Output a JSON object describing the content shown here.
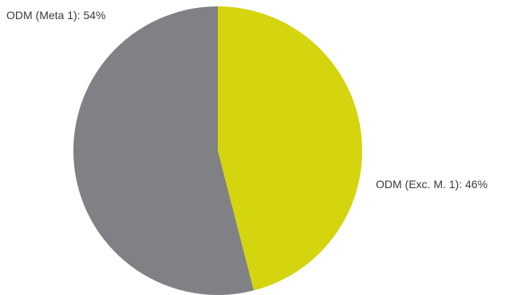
{
  "chart_data": {
    "type": "pie",
    "title": "",
    "slices": [
      {
        "label": "ODM (Exc. M. 1): 46%",
        "category": "ODM (Exc. M. 1)",
        "value": 46,
        "color": "#d4d40f"
      },
      {
        "label": "ODM (Meta 1): 54%",
        "category": "ODM (Meta 1)",
        "value": 54,
        "color": "#808184"
      }
    ],
    "start_angle": "12 o'clock",
    "direction": "clockwise",
    "legend": "none"
  }
}
